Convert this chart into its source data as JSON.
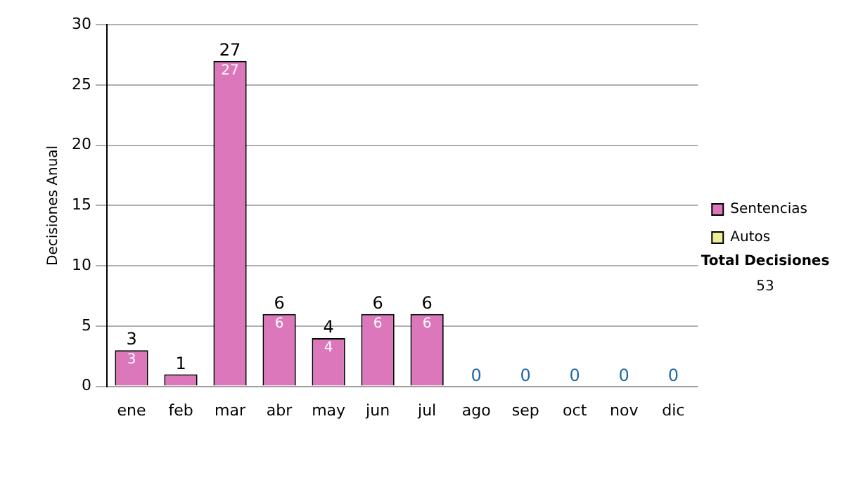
{
  "chart_data": {
    "type": "bar",
    "stacked": true,
    "ylabel": "Decisiones Anual",
    "categories": [
      "ene",
      "feb",
      "mar",
      "abr",
      "may",
      "jun",
      "jul",
      "ago",
      "sep",
      "oct",
      "nov",
      "dic"
    ],
    "series": [
      {
        "name": "Sentencias",
        "color": "#dd77bb",
        "values": [
          3,
          1,
          27,
          6,
          4,
          6,
          6,
          0,
          0,
          0,
          0,
          0
        ],
        "value_labels": [
          "3",
          null,
          "27",
          "6",
          "4",
          "6",
          "6",
          null,
          null,
          null,
          null,
          null
        ]
      },
      {
        "name": "Autos",
        "color": "#eeee99",
        "values": [
          0,
          0,
          0,
          0,
          0,
          0,
          0,
          0,
          0,
          0,
          0,
          0
        ]
      }
    ],
    "totals": [
      "3",
      "1",
      "27",
      "6",
      "4",
      "6",
      "6",
      "0",
      "0",
      "0",
      "0",
      "0"
    ],
    "ylim": [
      0,
      30
    ],
    "yticks": [
      0,
      5,
      10,
      15,
      20,
      25,
      30
    ],
    "grid": "y",
    "legend": "right",
    "annotations": [
      "Total Decisiones",
      "53"
    ]
  }
}
